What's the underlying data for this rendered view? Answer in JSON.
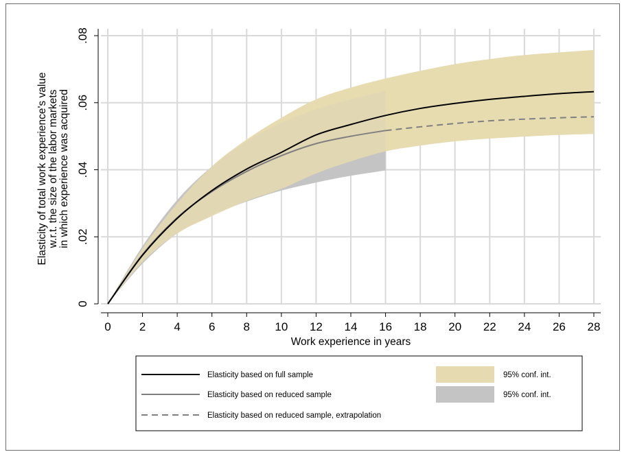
{
  "chart_data": {
    "type": "line",
    "xlabel": "Work experience in years",
    "ylabel_lines": [
      "Elasticity of total work experience's value",
      "w.r.t. the size of the labor markets",
      "in which experience was acquired"
    ],
    "xlim": [
      0,
      28
    ],
    "ylim": [
      0,
      0.08
    ],
    "x_ticks": [
      "0",
      "2",
      "4",
      "6",
      "8",
      "10",
      "12",
      "14",
      "16",
      "18",
      "20",
      "22",
      "24",
      "26",
      "28"
    ],
    "y_ticks": [
      {
        "value": 0,
        "label": "0"
      },
      {
        "value": 0.02,
        "label": ".02"
      },
      {
        "value": 0.04,
        "label": ".04"
      },
      {
        "value": 0.06,
        "label": ".06"
      },
      {
        "value": 0.08,
        "label": ".08"
      }
    ],
    "grid": true,
    "x": [
      0,
      2,
      4,
      6,
      8,
      10,
      12,
      14,
      16,
      18,
      20,
      22,
      24,
      26,
      28
    ],
    "series": [
      {
        "name": "Elasticity based on full sample",
        "color": "#000000",
        "style": "solid",
        "x": [
          0,
          2,
          4,
          6,
          8,
          10,
          12,
          14,
          16,
          18,
          20,
          22,
          24,
          26,
          28
        ],
        "values": [
          0,
          0.0145,
          0.0255,
          0.0338,
          0.0402,
          0.0452,
          0.0504,
          0.0535,
          0.0562,
          0.0583,
          0.0598,
          0.061,
          0.0619,
          0.0627,
          0.0633
        ]
      },
      {
        "name": "Elasticity based on reduced sample",
        "color": "#7f7f7f",
        "style": "solid",
        "x": [
          0,
          2,
          4,
          6,
          8,
          10,
          12,
          14,
          16
        ],
        "values": [
          0,
          0.0147,
          0.0257,
          0.0335,
          0.0395,
          0.0442,
          0.0478,
          0.05,
          0.0517
        ]
      },
      {
        "name": "Elasticity based on reduced sample, extrapolation",
        "color": "#7f7f7f",
        "style": "dashed",
        "x": [
          16,
          18,
          20,
          22,
          24,
          26,
          28
        ],
        "values": [
          0.0517,
          0.0528,
          0.0538,
          0.0546,
          0.0551,
          0.0555,
          0.0558
        ]
      }
    ],
    "bands": [
      {
        "name": "95% conf. int.",
        "color": "#e6dab0",
        "x": [
          0,
          2,
          4,
          6,
          8,
          10,
          12,
          14,
          16,
          18,
          20,
          22,
          24,
          26,
          28
        ],
        "lower": [
          0,
          0.0125,
          0.021,
          0.0262,
          0.0307,
          0.0343,
          0.0389,
          0.0425,
          0.0455,
          0.0472,
          0.0485,
          0.0493,
          0.0499,
          0.0504,
          0.0507
        ],
        "upper": [
          0,
          0.0165,
          0.03,
          0.041,
          0.049,
          0.0555,
          0.061,
          0.0645,
          0.0672,
          0.0695,
          0.0715,
          0.073,
          0.0742,
          0.075,
          0.0757
        ]
      },
      {
        "name": "95% conf. int.",
        "color": "#c4c4c4",
        "x": [
          0,
          2,
          4,
          6,
          8,
          10,
          12,
          14,
          16
        ],
        "lower": [
          0,
          0.012,
          0.021,
          0.0265,
          0.0305,
          0.0338,
          0.0362,
          0.0382,
          0.0398
        ],
        "upper": [
          0,
          0.0172,
          0.031,
          0.041,
          0.0485,
          0.054,
          0.058,
          0.061,
          0.0635
        ]
      }
    ],
    "legend": {
      "position": "bottom",
      "entries": [
        {
          "label": "Elasticity based on full sample",
          "kind": "line",
          "color": "#000000",
          "style": "solid"
        },
        {
          "label": "Elasticity based on reduced sample",
          "kind": "line",
          "color": "#7f7f7f",
          "style": "solid"
        },
        {
          "label": "Elasticity based on reduced sample, extrapolation",
          "kind": "line",
          "color": "#7f7f7f",
          "style": "dashed"
        },
        {
          "label": "95% conf. int.",
          "kind": "area",
          "color": "#e6dab0"
        },
        {
          "label": "95% conf. int.",
          "kind": "area",
          "color": "#c4c4c4"
        }
      ]
    }
  }
}
